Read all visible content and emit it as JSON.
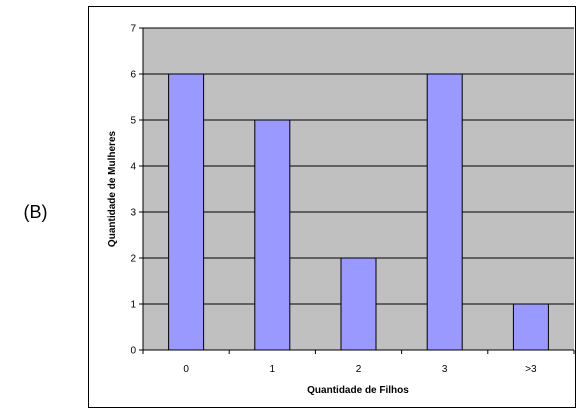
{
  "panel_label": "(B)",
  "chart_data": {
    "type": "bar",
    "categories": [
      "0",
      "1",
      "2",
      "3",
      ">3"
    ],
    "values": [
      6,
      5,
      2,
      6,
      1
    ],
    "title": "",
    "xlabel": "Quantidade de Filhos",
    "ylabel": "Quantidade de Mulheres",
    "ylim": [
      0,
      7
    ],
    "yticks": [
      0,
      1,
      2,
      3,
      4,
      5,
      6,
      7
    ],
    "grid": true,
    "colors": {
      "bar_fill": "#9999ff",
      "bar_stroke": "#000000",
      "plot_background": "#c0c0c0",
      "gridline": "#000000"
    }
  }
}
